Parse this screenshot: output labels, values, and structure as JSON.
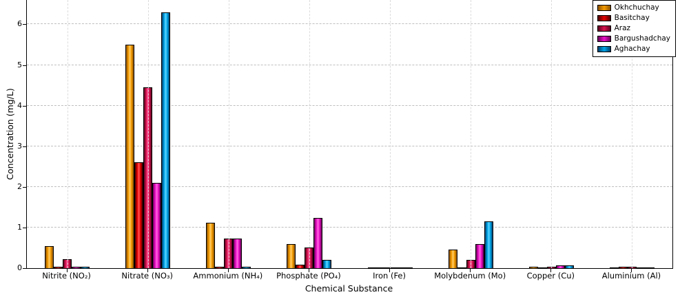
{
  "chart_data": {
    "type": "bar",
    "title": "",
    "xlabel": "Chemical Substance",
    "ylabel": "Concentration (mg/L)",
    "categories": [
      "Nitrite (NO₂)",
      "Nitrate (NO₃)",
      "Ammonium (NH₄)",
      "Phosphate (PO₄)",
      "Iron (Fe)",
      "Molybdenum (Mo)",
      "Copper (Cu)",
      "Aluminium (Al)"
    ],
    "series": [
      {
        "name": "Okhchuchay",
        "color": "#F59B00",
        "color_light": "#FFCE6B",
        "color_dark": "#8A5200",
        "values": [
          0.55,
          5.5,
          1.12,
          0.6,
          0.02,
          0.45,
          0.04,
          0.02
        ]
      },
      {
        "name": "Basitchay",
        "color": "#E60000",
        "color_light": "#FF5A5A",
        "color_dark": "#4A0000",
        "values": [
          0.03,
          2.6,
          0.04,
          0.08,
          0.02,
          0.02,
          0.02,
          0.04
        ]
      },
      {
        "name": "Araz",
        "color": "#D9144F",
        "color_light": "#FF5FA0",
        "color_dark": "#5A0020",
        "values": [
          0.22,
          4.45,
          0.73,
          0.5,
          0.02,
          0.2,
          0.03,
          0.03
        ]
      },
      {
        "name": "Bargushadchay",
        "color": "#ED0FC8",
        "color_light": "#FF6BE0",
        "color_dark": "#6A0058",
        "values": [
          0.03,
          2.1,
          0.73,
          1.23,
          0.02,
          0.6,
          0.06,
          0.02
        ]
      },
      {
        "name": "Aghachay",
        "color": "#00A6E8",
        "color_light": "#5FD6FF",
        "color_dark": "#003E6A",
        "values": [
          0.03,
          6.3,
          0.03,
          0.2,
          0.02,
          1.15,
          0.07,
          0.02
        ]
      }
    ],
    "ylim": [
      0,
      6.6
    ],
    "yticks": [
      0,
      1,
      2,
      3,
      4,
      5,
      6
    ],
    "grid": "dashed",
    "legend_position": "upper right"
  }
}
